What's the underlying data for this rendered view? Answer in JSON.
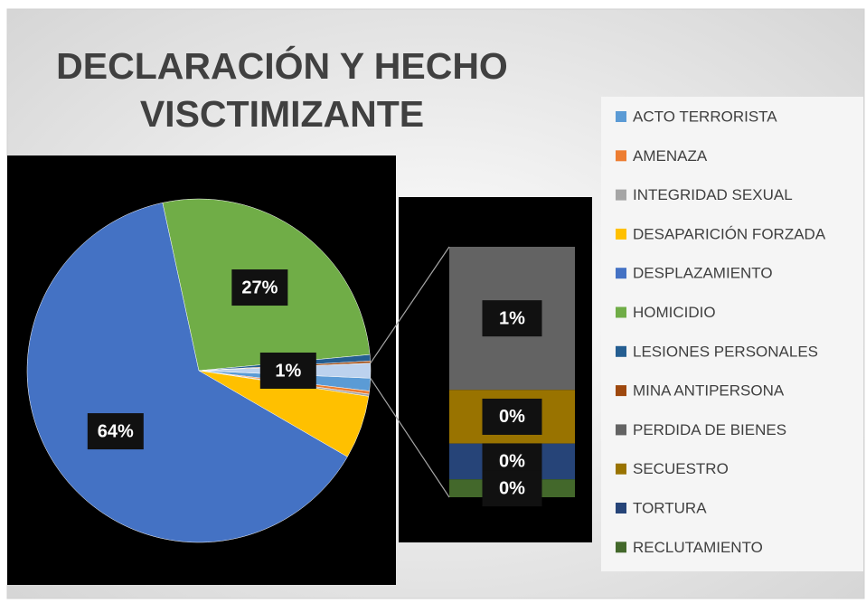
{
  "chart_data": {
    "type": "pie-of-bar",
    "title": [
      "DECLARACIÓN Y HECHO",
      "VISCTIMIZANTE"
    ],
    "categories": [
      "ACTO TERRORISTA",
      "AMENAZA",
      "INTEGRIDAD SEXUAL",
      "DESAPARICIÓN FORZADA",
      "DESPLAZAMIENTO",
      "HOMICIDIO",
      "LESIONES PERSONALES",
      "MINA ANTIPERSONA",
      "PERDIDA DE BIENES",
      "SECUESTRO",
      "TORTURA",
      "RECLUTAMIENTO"
    ],
    "values": [
      1.2,
      0.3,
      0.2,
      6,
      63.5,
      27,
      0.6,
      0.2,
      0.8,
      0.3,
      0.2,
      0.1
    ],
    "value_labels": [
      null,
      null,
      null,
      null,
      "64%",
      "27%",
      null,
      null,
      "1%",
      "0%",
      "0%",
      "0%"
    ],
    "colors": [
      "#5b9bd5",
      "#ed7d31",
      "#a5a5a5",
      "#ffc000",
      "#4472c4",
      "#70ad47",
      "#255e91",
      "#9e480e",
      "#636363",
      "#997300",
      "#264478",
      "#43682b"
    ],
    "split_count": 4,
    "secondary_label": "1%",
    "legend": "right"
  }
}
